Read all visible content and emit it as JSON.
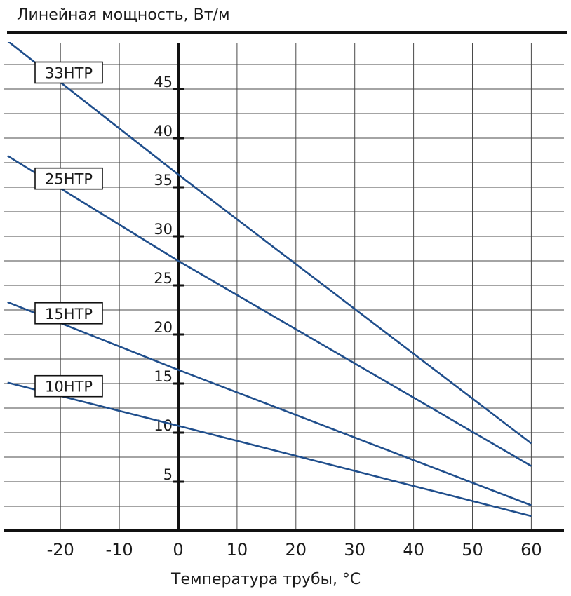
{
  "chart_data": {
    "type": "line",
    "title": "",
    "ylabel": "Линейная мощность, Вт/м",
    "xlabel": "Температура трубы, °С",
    "xlim": [
      -28,
      65
    ],
    "ylim": [
      0,
      50
    ],
    "xticks": [
      -20,
      -10,
      0,
      10,
      20,
      30,
      40,
      50,
      60
    ],
    "xtick_labels": [
      "-20",
      "-10",
      "0",
      "10",
      "20",
      "30",
      "40",
      "50",
      "60"
    ],
    "yticks": [
      5,
      10,
      15,
      20,
      25,
      30,
      35,
      40,
      45
    ],
    "ytick_labels": [
      "5",
      "10",
      "15",
      "20",
      "25",
      "30",
      "35",
      "40",
      "45"
    ],
    "grid": true,
    "series_color": "#1f4e8c",
    "series": [
      {
        "name": "33НТР",
        "x": [
          -29,
          0,
          60
        ],
        "y": [
          49.9,
          36.3,
          8.9
        ]
      },
      {
        "name": "25НТР",
        "x": [
          -29,
          0,
          60
        ],
        "y": [
          38.2,
          27.5,
          6.6
        ]
      },
      {
        "name": "15НТР",
        "x": [
          -29,
          0,
          60
        ],
        "y": [
          23.3,
          16.4,
          2.6
        ]
      },
      {
        "name": "10НТР",
        "x": [
          -29,
          0,
          60
        ],
        "y": [
          15.1,
          10.7,
          1.5
        ]
      }
    ]
  }
}
